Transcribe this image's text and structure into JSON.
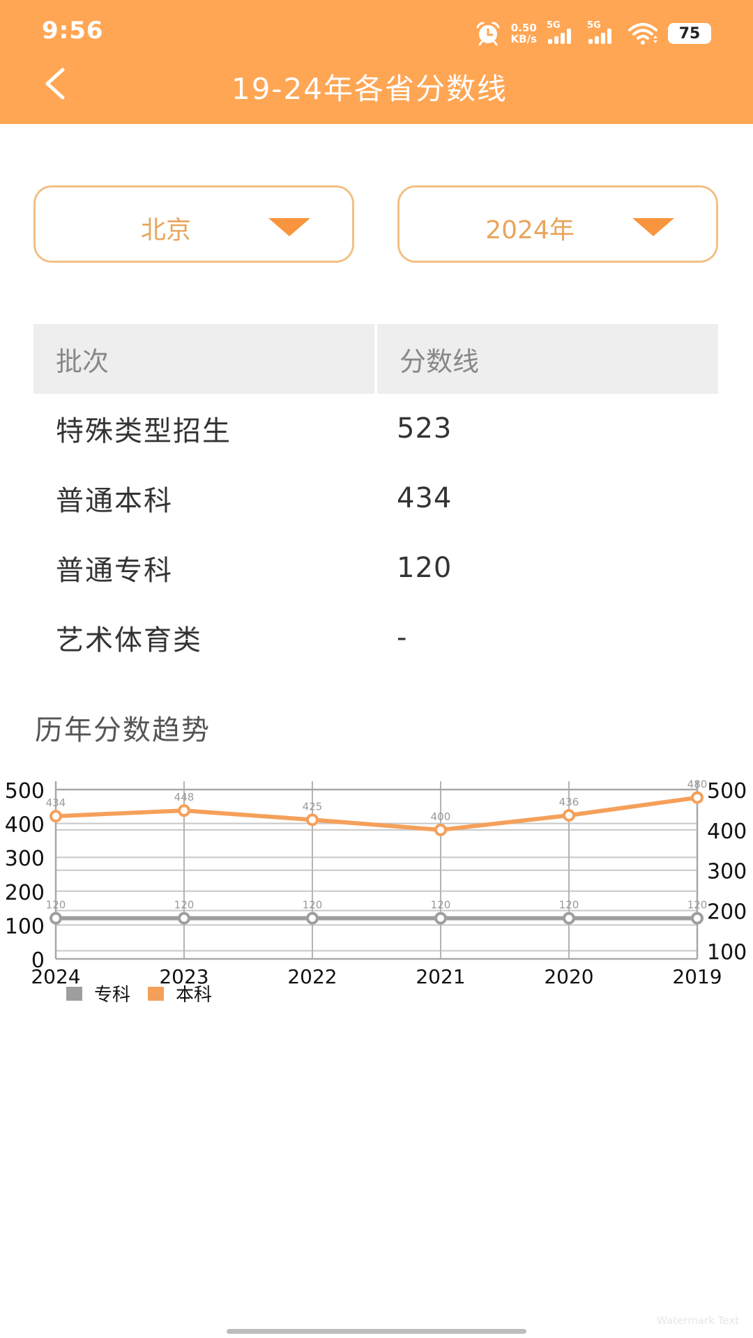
{
  "status_bar": {
    "time": "9:56",
    "net_speed_value": "0.50",
    "net_speed_unit": "KB/s",
    "sim1_label": "5G",
    "sim2_label": "5G",
    "battery": "75",
    "icons": [
      "alarm-icon",
      "signal-5g-icon",
      "signal-5g-icon",
      "wifi-icon",
      "battery-icon"
    ]
  },
  "header": {
    "back_icon": "chevron-left-icon",
    "title": "19-24年各省分数线",
    "background_color": "#FFA654"
  },
  "filters": {
    "province": {
      "selected": "北京",
      "icon": "caret-down-icon"
    },
    "year": {
      "selected": "2024年",
      "icon": "caret-down-icon"
    }
  },
  "table": {
    "columns": [
      "批次",
      "分数线"
    ],
    "rows": [
      {
        "batch": "特殊类型招生",
        "score": "523"
      },
      {
        "batch": "普通本科",
        "score": "434"
      },
      {
        "batch": "普通专科",
        "score": "120"
      },
      {
        "batch": "艺术体育类",
        "score": "-"
      }
    ]
  },
  "trend": {
    "title": "历年分数趋势"
  },
  "chart_data": {
    "type": "line",
    "title": "历年分数趋势",
    "categories": [
      "2024",
      "2023",
      "2022",
      "2021",
      "2020",
      "2019"
    ],
    "series": [
      {
        "name": "专科",
        "color": "#9E9E9E",
        "axis": "left",
        "values": [
          120,
          120,
          120,
          120,
          120,
          120
        ]
      },
      {
        "name": "本科",
        "color": "#F5A05A",
        "axis": "right",
        "values": [
          434,
          448,
          425,
          400,
          436,
          480
        ]
      }
    ],
    "left_axis": {
      "ticks": [
        "0",
        "100",
        "200",
        "300",
        "400",
        "500"
      ],
      "range": [
        0,
        500
      ]
    },
    "right_axis": {
      "ticks": [
        "100",
        "200",
        "300",
        "400",
        "500"
      ],
      "range": [
        80,
        500
      ]
    },
    "legend": [
      {
        "label": "专科",
        "color": "#9E9E9E"
      },
      {
        "label": "本科",
        "color": "#F5A05A"
      }
    ],
    "legend_position": "bottom-left",
    "grid": true,
    "xlabel": "",
    "ylabel": ""
  },
  "footer": {
    "watermark": "Watermark Text"
  }
}
